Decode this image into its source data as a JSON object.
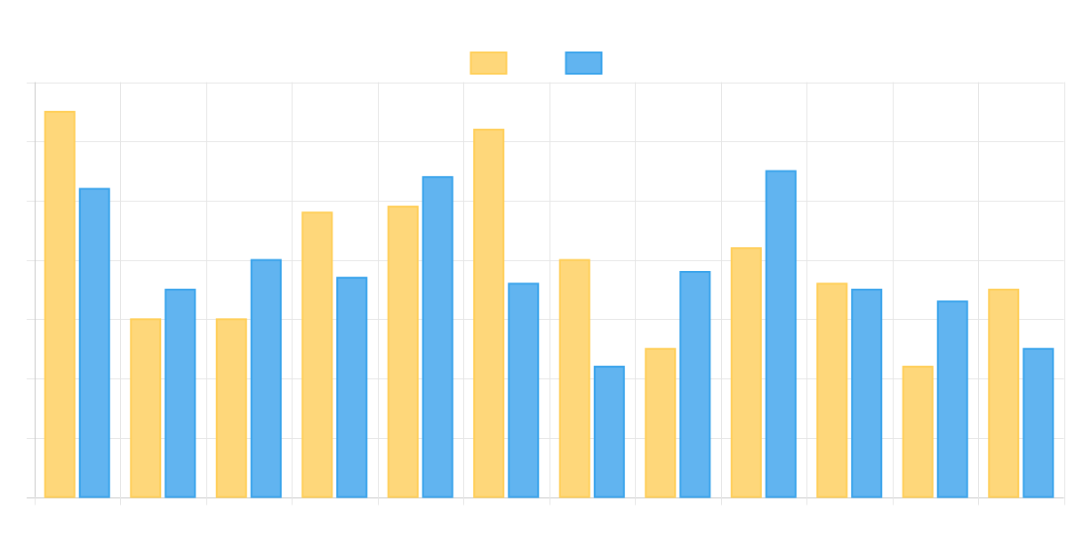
{
  "chart_data": {
    "type": "bar",
    "title": "",
    "xlabel": "",
    "ylabel": "",
    "categories": [
      "",
      "",
      "",
      "",
      "",
      "",
      "",
      "",
      "",
      "",
      "",
      ""
    ],
    "ylim": [
      0,
      70
    ],
    "y_grid_step": 10,
    "grid": true,
    "legend_position": "top-center",
    "series": [
      {
        "values": [
          65,
          30,
          30,
          48,
          49,
          62,
          40,
          25,
          42,
          36,
          22,
          35
        ],
        "fill": "#fed77a",
        "stroke": "#ffce56"
      },
      {
        "values": [
          52,
          35,
          40,
          37,
          54,
          36,
          22,
          38,
          55,
          35,
          33,
          25
        ],
        "fill": "#61b4f0",
        "stroke": "#36a2eb"
      }
    ],
    "colors": {
      "grid": "#e5e5e5",
      "axis": "#c8c8c8"
    }
  }
}
